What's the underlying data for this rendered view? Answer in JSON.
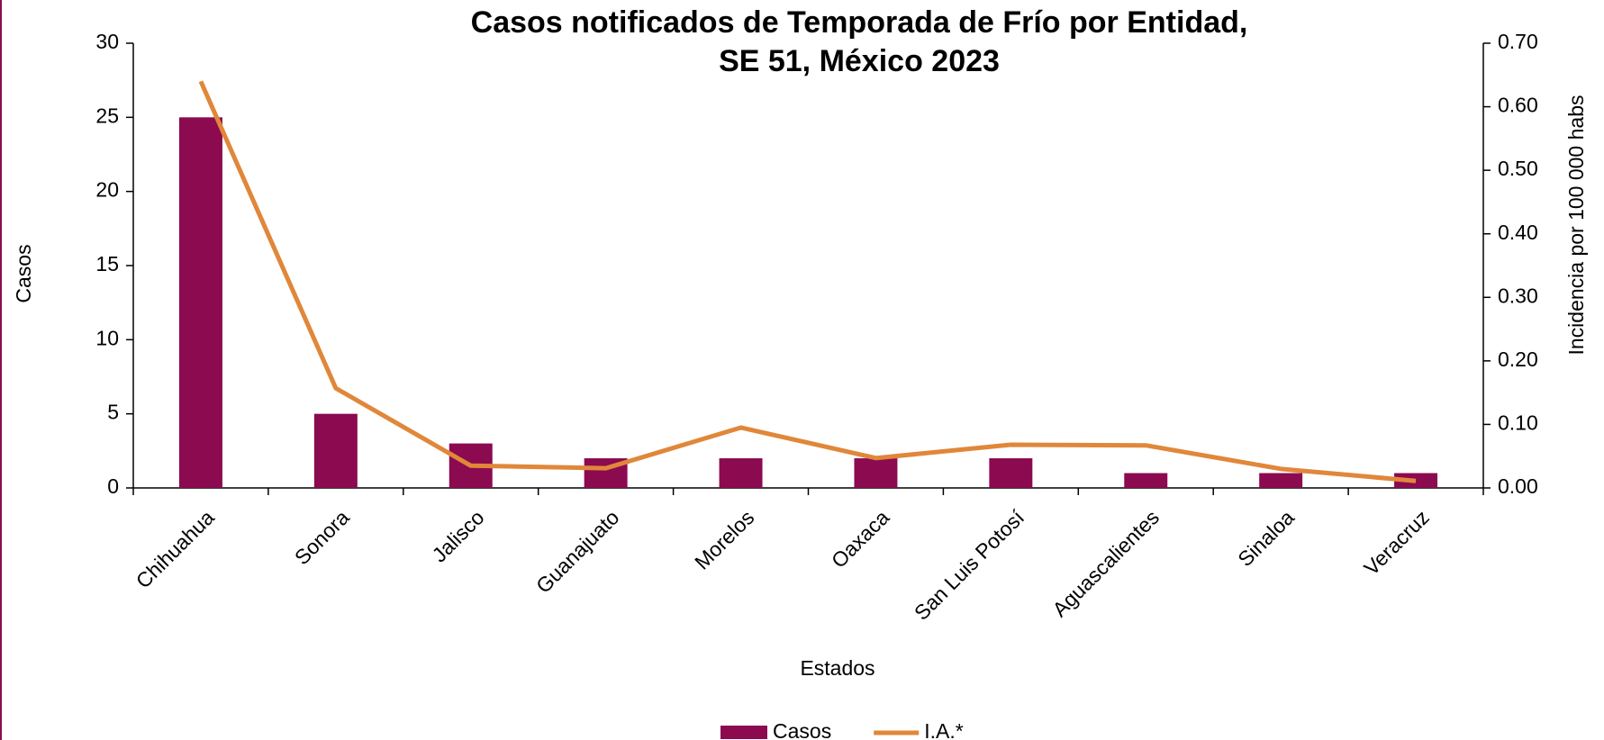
{
  "chart_data": {
    "type": "bar_line",
    "title": [
      "Casos notificados de Temporada de Frío por Entidad,",
      "SE 51, México 2023"
    ],
    "x_label": "Estados",
    "y_label": "Casos",
    "y2_label": "Incidencia por 100 000 habs",
    "categories": [
      "Chihuahua",
      "Sonora",
      "Jalisco",
      "Guanajuato",
      "Morelos",
      "Oaxaca",
      "San Luis Potosí",
      "Aguascalientes",
      "Sinaloa",
      "Veracruz"
    ],
    "series": [
      {
        "name": "Casos",
        "type": "bar",
        "color": "#8b0a50",
        "values": [
          25,
          5,
          3,
          2,
          2,
          2,
          2,
          1,
          1,
          1
        ]
      },
      {
        "name": "I.A.*",
        "type": "line",
        "axis": "y2",
        "color": "#e0873a",
        "values": [
          0.64,
          0.157,
          0.035,
          0.031,
          0.095,
          0.047,
          0.068,
          0.067,
          0.03,
          0.011
        ]
      }
    ],
    "ylim": [
      0,
      30
    ],
    "yticks": [
      0,
      5,
      10,
      15,
      20,
      25,
      30
    ],
    "y2lim": [
      0,
      0.7
    ],
    "y2ticks": [
      {
        "value": 0,
        "label": "0.00"
      },
      {
        "value": 0.1,
        "label": "0.10"
      },
      {
        "value": 0.2,
        "label": "0.20"
      },
      {
        "value": 0.3,
        "label": "0.30"
      },
      {
        "value": 0.4,
        "label": "0.40"
      },
      {
        "value": 0.5,
        "label": "0.50"
      },
      {
        "value": 0.6,
        "label": "0.60"
      },
      {
        "value": 0.7,
        "label": "0.70"
      }
    ],
    "legend": "bottom"
  }
}
